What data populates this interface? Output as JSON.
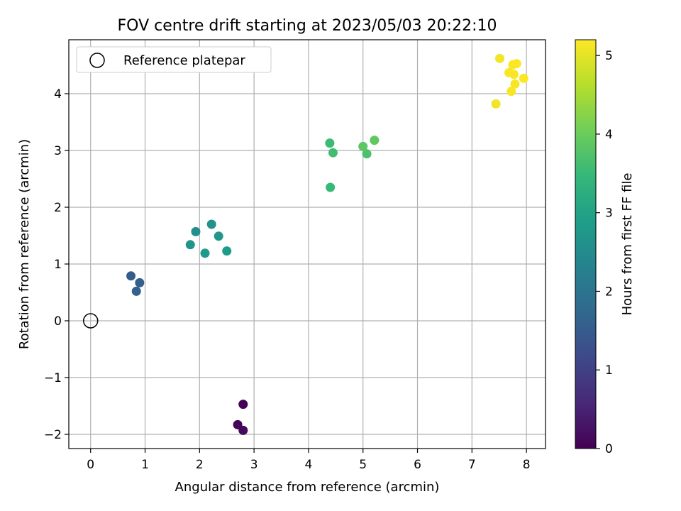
{
  "chart_data": {
    "type": "scatter",
    "title": "FOV centre drift starting at 2023/05/03 20:22:10",
    "xlabel": "Angular distance from reference (arcmin)",
    "ylabel": "Rotation from reference (arcmin)",
    "xlim": [
      -0.4,
      8.35
    ],
    "ylim": [
      -2.25,
      4.95
    ],
    "xticks": [
      0,
      1,
      2,
      3,
      4,
      5,
      6,
      7,
      8
    ],
    "yticks": [
      -2,
      -1,
      0,
      1,
      2,
      3,
      4
    ],
    "ytick_labels": [
      "−2",
      "−1",
      "0",
      "1",
      "2",
      "3",
      "4"
    ],
    "grid": true,
    "legend": {
      "position": "upper-left",
      "entries": [
        "Reference platepar"
      ]
    },
    "reference_point": {
      "x": 0,
      "y": 0
    },
    "colorbar": {
      "label": "Hours from first FF file",
      "range": [
        0,
        5.2
      ],
      "ticks": [
        0,
        1,
        2,
        3,
        4,
        5
      ],
      "colormap": "viridis"
    },
    "points": [
      {
        "x": 2.8,
        "y": -1.47,
        "hours": 0.0
      },
      {
        "x": 2.7,
        "y": -1.83,
        "hours": 0.05
      },
      {
        "x": 2.8,
        "y": -1.93,
        "hours": 0.1
      },
      {
        "x": 0.74,
        "y": 0.79,
        "hours": 1.5
      },
      {
        "x": 0.9,
        "y": 0.67,
        "hours": 1.55
      },
      {
        "x": 0.84,
        "y": 0.52,
        "hours": 1.6
      },
      {
        "x": 1.93,
        "y": 1.57,
        "hours": 2.6
      },
      {
        "x": 2.22,
        "y": 1.7,
        "hours": 2.65
      },
      {
        "x": 1.83,
        "y": 1.34,
        "hours": 2.7
      },
      {
        "x": 2.35,
        "y": 1.49,
        "hours": 2.75
      },
      {
        "x": 2.1,
        "y": 1.19,
        "hours": 2.8
      },
      {
        "x": 2.5,
        "y": 1.23,
        "hours": 2.85
      },
      {
        "x": 4.4,
        "y": 2.35,
        "hours": 3.5
      },
      {
        "x": 4.39,
        "y": 3.13,
        "hours": 3.55
      },
      {
        "x": 4.45,
        "y": 2.96,
        "hours": 3.6
      },
      {
        "x": 5.07,
        "y": 2.94,
        "hours": 3.7
      },
      {
        "x": 5.0,
        "y": 3.07,
        "hours": 3.85
      },
      {
        "x": 5.21,
        "y": 3.18,
        "hours": 3.9
      },
      {
        "x": 7.44,
        "y": 3.82,
        "hours": 5.1
      },
      {
        "x": 7.51,
        "y": 4.62,
        "hours": 5.12
      },
      {
        "x": 7.72,
        "y": 4.04,
        "hours": 5.14
      },
      {
        "x": 7.79,
        "y": 4.17,
        "hours": 5.15
      },
      {
        "x": 7.68,
        "y": 4.37,
        "hours": 5.16
      },
      {
        "x": 7.77,
        "y": 4.34,
        "hours": 5.17
      },
      {
        "x": 7.75,
        "y": 4.51,
        "hours": 5.18
      },
      {
        "x": 7.82,
        "y": 4.53,
        "hours": 5.19
      },
      {
        "x": 7.95,
        "y": 4.27,
        "hours": 5.2
      }
    ]
  }
}
